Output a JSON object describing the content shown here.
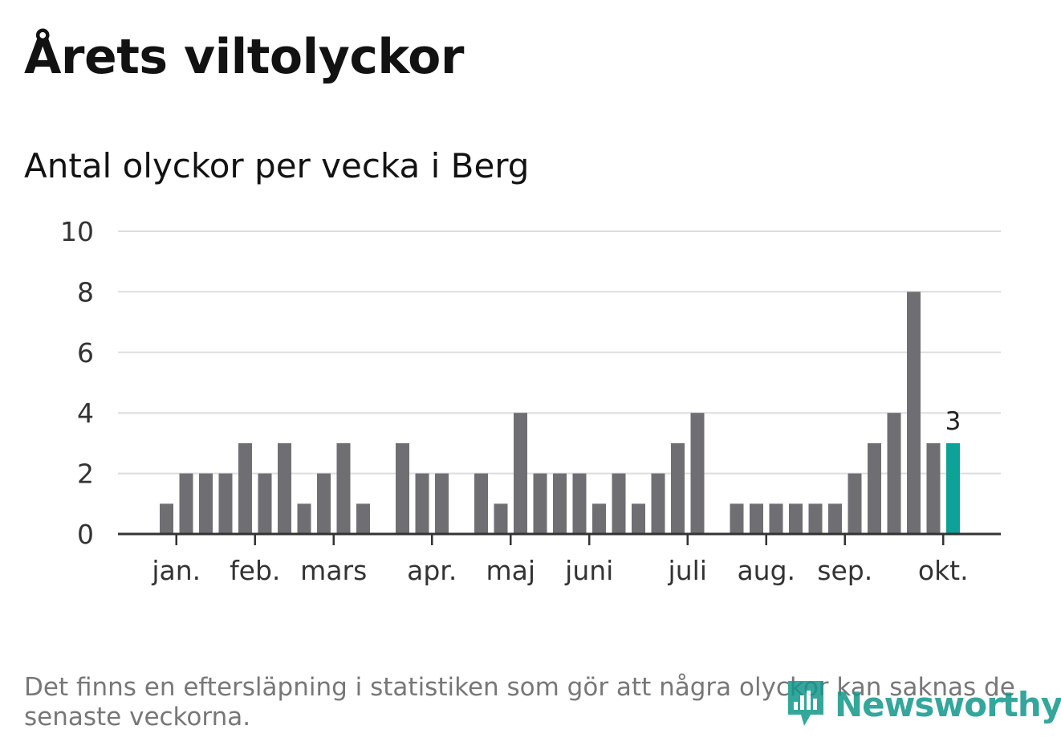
{
  "header": {
    "title": "Årets viltolyckor",
    "subtitle": "Antal olyckor per vecka i Berg"
  },
  "footer": {
    "note": "Det finns en eftersläpning i statistiken som gör att några olyckor kan saknas de senaste veckorna.",
    "brand": "Newsworthy"
  },
  "colors": {
    "bar": "#6f6e73",
    "highlight": "#0ca298",
    "grid": "#dddddd",
    "axis": "#333333",
    "brand": "#11978b"
  },
  "chart_data": {
    "type": "bar",
    "title": "Antal olyckor per vecka i Berg",
    "xlabel": "",
    "ylabel": "",
    "ylim": [
      0,
      10
    ],
    "yticks": [
      0,
      2,
      4,
      6,
      8,
      10
    ],
    "weeks": [
      1,
      2,
      3,
      4,
      5,
      6,
      7,
      8,
      9,
      10,
      11,
      12,
      13,
      14,
      15,
      16,
      17,
      18,
      19,
      20,
      21,
      22,
      23,
      24,
      25,
      26,
      27,
      28,
      29,
      30,
      31,
      32,
      33,
      34,
      35,
      36,
      37,
      38,
      39,
      40,
      41,
      42
    ],
    "values": [
      0,
      1,
      2,
      2,
      2,
      3,
      2,
      3,
      1,
      2,
      3,
      1,
      0,
      3,
      2,
      2,
      0,
      2,
      1,
      4,
      2,
      2,
      2,
      1,
      2,
      1,
      2,
      3,
      4,
      0,
      1,
      1,
      1,
      1,
      1,
      1,
      2,
      3,
      4,
      8,
      3,
      3
    ],
    "month_ticks": [
      {
        "label": "jan.",
        "week": 2.5
      },
      {
        "label": "feb.",
        "week": 6.5
      },
      {
        "label": "mars",
        "week": 10.5
      },
      {
        "label": "apr.",
        "week": 15.5
      },
      {
        "label": "maj",
        "week": 19.5
      },
      {
        "label": "juni",
        "week": 23.5
      },
      {
        "label": "juli",
        "week": 28.5
      },
      {
        "label": "aug.",
        "week": 32.5
      },
      {
        "label": "sep.",
        "week": 36.5
      },
      {
        "label": "okt.",
        "week": 41.5
      }
    ],
    "highlight_index": 41,
    "highlight_label": "3",
    "grid": true,
    "legend": "none"
  }
}
